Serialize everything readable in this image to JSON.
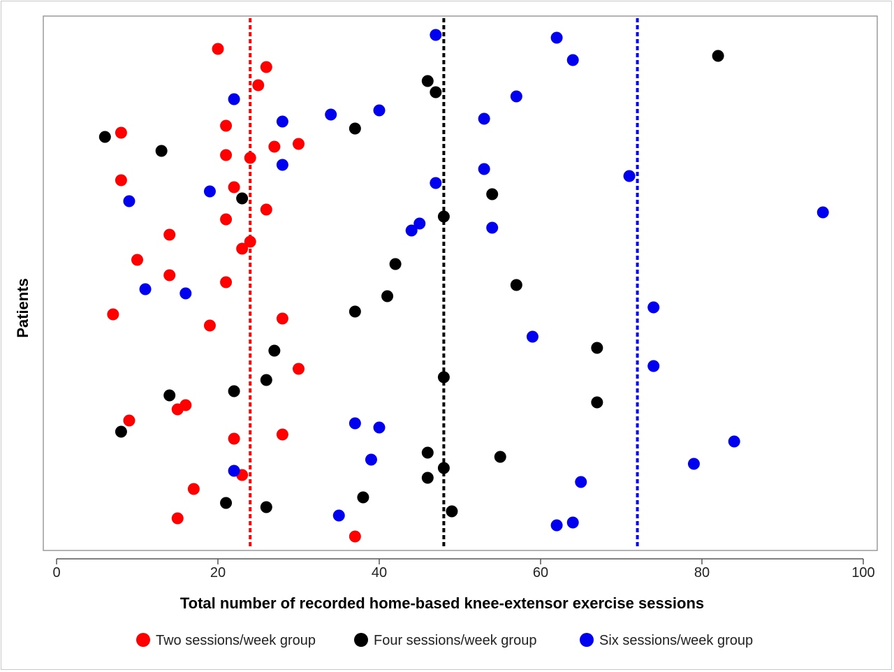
{
  "chart_data": {
    "type": "scatter",
    "xlabel": "Total number of recorded home-based knee-extensor exercise sessions",
    "ylabel": "Patients",
    "xlim": [
      0,
      100
    ],
    "xticks": [
      0,
      20,
      40,
      60,
      80,
      100
    ],
    "grid": false,
    "legend_position": "bottom",
    "series": [
      {
        "name": "Two sessions/week group",
        "color": "#ff0000",
        "reference_line": 24,
        "points": [
          [
            20,
            70
          ],
          [
            26,
            96
          ],
          [
            25,
            122
          ],
          [
            8,
            190
          ],
          [
            21,
            180
          ],
          [
            30,
            206
          ],
          [
            27,
            210
          ],
          [
            21,
            222
          ],
          [
            24,
            226
          ],
          [
            8,
            258
          ],
          [
            22,
            268
          ],
          [
            26,
            300
          ],
          [
            21,
            314
          ],
          [
            14,
            336
          ],
          [
            24,
            346
          ],
          [
            23,
            356
          ],
          [
            10,
            372
          ],
          [
            14,
            394
          ],
          [
            21,
            404
          ],
          [
            7,
            450
          ],
          [
            28,
            456
          ],
          [
            19,
            466
          ],
          [
            30,
            528
          ],
          [
            16,
            580
          ],
          [
            15,
            586
          ],
          [
            9,
            602
          ],
          [
            22,
            628
          ],
          [
            28,
            622
          ],
          [
            23,
            680
          ],
          [
            17,
            700
          ],
          [
            15,
            742
          ],
          [
            37,
            768
          ]
        ]
      },
      {
        "name": "Four sessions/week group",
        "color": "#000000",
        "reference_line": 48,
        "points": [
          [
            82,
            80
          ],
          [
            46,
            116
          ],
          [
            47,
            132
          ],
          [
            37,
            184
          ],
          [
            6,
            196
          ],
          [
            13,
            216
          ],
          [
            23,
            284
          ],
          [
            54,
            278
          ],
          [
            48,
            310
          ],
          [
            42,
            378
          ],
          [
            57,
            408
          ],
          [
            41,
            424
          ],
          [
            37,
            446
          ],
          [
            27,
            502
          ],
          [
            67,
            498
          ],
          [
            26,
            544
          ],
          [
            48,
            540
          ],
          [
            22,
            560
          ],
          [
            14,
            566
          ],
          [
            67,
            576
          ],
          [
            8,
            618
          ],
          [
            46,
            648
          ],
          [
            55,
            654
          ],
          [
            48,
            670
          ],
          [
            46,
            684
          ],
          [
            38,
            712
          ],
          [
            21,
            720
          ],
          [
            26,
            726
          ],
          [
            49,
            732
          ]
        ]
      },
      {
        "name": "Six sessions/week group",
        "color": "#0000ee",
        "reference_line": 72,
        "points": [
          [
            47,
            50
          ],
          [
            62,
            54
          ],
          [
            64,
            86
          ],
          [
            57,
            138
          ],
          [
            22,
            142
          ],
          [
            40,
            158
          ],
          [
            34,
            164
          ],
          [
            28,
            174
          ],
          [
            53,
            170
          ],
          [
            28,
            236
          ],
          [
            53,
            242
          ],
          [
            71,
            252
          ],
          [
            47,
            262
          ],
          [
            19,
            274
          ],
          [
            9,
            288
          ],
          [
            95,
            304
          ],
          [
            45,
            320
          ],
          [
            44,
            330
          ],
          [
            54,
            326
          ],
          [
            11,
            414
          ],
          [
            16,
            420
          ],
          [
            74,
            440
          ],
          [
            59,
            482
          ],
          [
            74,
            524
          ],
          [
            37,
            606
          ],
          [
            40,
            612
          ],
          [
            84,
            632
          ],
          [
            39,
            658
          ],
          [
            79,
            664
          ],
          [
            22,
            674
          ],
          [
            65,
            690
          ],
          [
            35,
            738
          ],
          [
            64,
            748
          ],
          [
            62,
            752
          ]
        ]
      }
    ]
  }
}
